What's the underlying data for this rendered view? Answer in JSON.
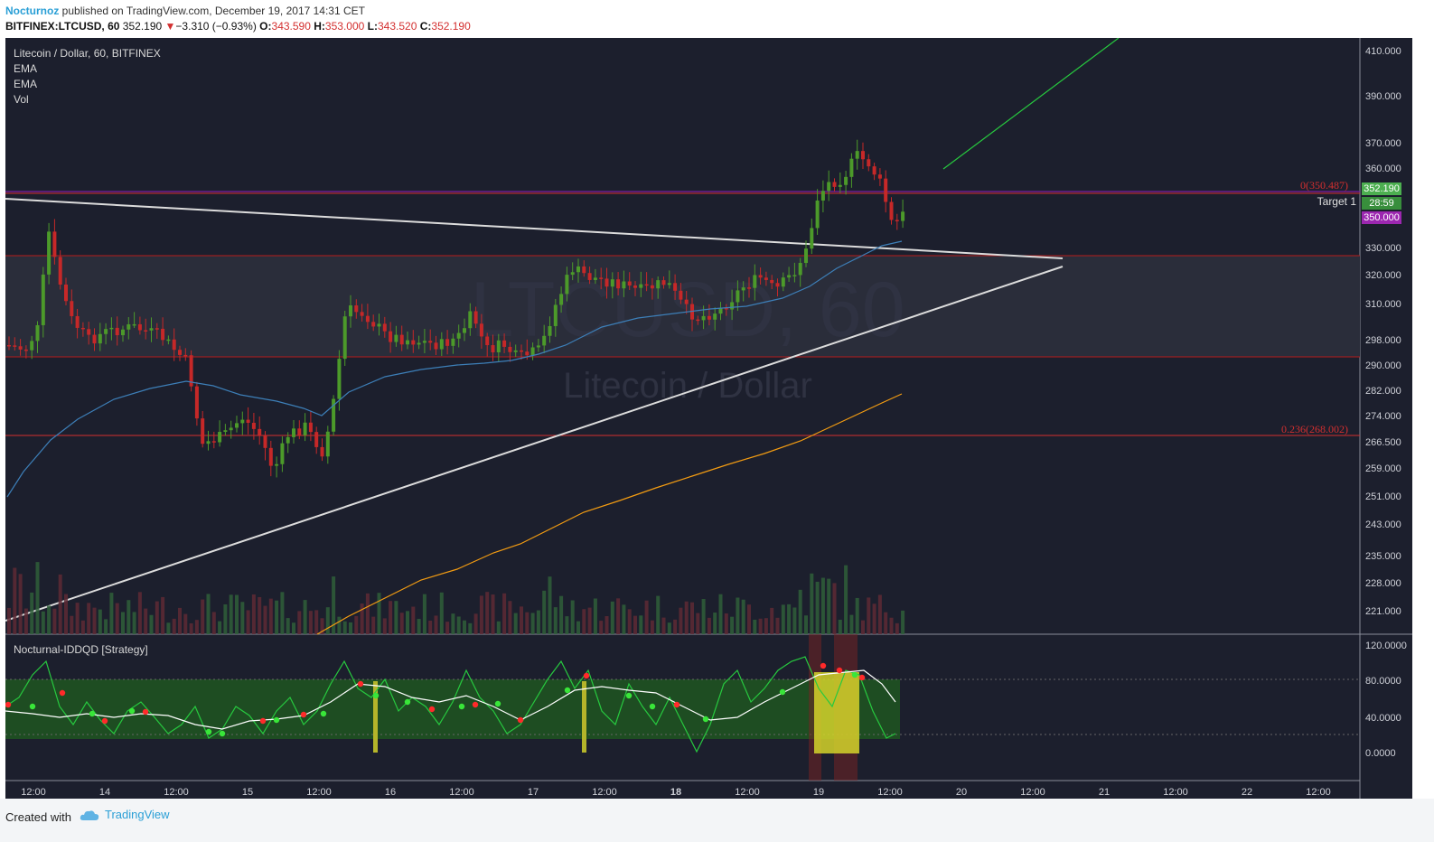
{
  "header": {
    "author": "Nocturnoz",
    "published": "published on TradingView.com, December 19, 2017 14:31 CET",
    "symbol_line": "BITFINEX:LTCUSD, 60",
    "last": "352.190",
    "change_arrow": "▼",
    "change": "−3.310 (−0.93%)",
    "open_label": "O:",
    "open": "343.590",
    "high_label": "H:",
    "high": "353.000",
    "low_label": "L:",
    "low": "343.520",
    "close_label": "C:",
    "close": "352.190"
  },
  "legend": {
    "title": "Litecoin / Dollar, 60, BITFINEX",
    "items": [
      "EMA",
      "EMA",
      "Vol"
    ],
    "indicator": "Nocturnal-IDDQD [Strategy]"
  },
  "watermark": {
    "symbol": "LTCUSD, 60",
    "name": "Litecoin / Dollar"
  },
  "annotations": {
    "fib0": "0(350.487)",
    "fib236": "0.236(268.002)",
    "target": "Target 1"
  },
  "price_tags": {
    "last": "352.190",
    "countdown": "28:59",
    "target_price": "350.000",
    "colors": {
      "last": "#4caf50",
      "countdown": "#388e3c",
      "target": "#9c27b0"
    }
  },
  "price_axis": [
    "410.000",
    "390.000",
    "370.000",
    "360.000",
    "330.000",
    "320.000",
    "310.000",
    "298.000",
    "290.000",
    "282.000",
    "274.000",
    "266.500",
    "259.000",
    "251.000",
    "243.000",
    "235.000",
    "228.000",
    "221.000"
  ],
  "osc_axis": [
    "120.0000",
    "80.0000",
    "40.0000",
    "0.0000"
  ],
  "time_axis": [
    "12:00",
    "14",
    "12:00",
    "15",
    "12:00",
    "16",
    "12:00",
    "17",
    "12:00",
    "18",
    "12:00",
    "19",
    "12:00",
    "20",
    "12:00",
    "21",
    "12:00",
    "22",
    "12:00"
  ],
  "footer": {
    "created": "Created with",
    "brand": "TradingView"
  },
  "colors": {
    "background": "#1c1f2d",
    "up": "#4c9a2a",
    "down": "#c62828",
    "ema_fast": "#3d7fb8",
    "ema_slow": "#f39c12",
    "trendline": "#d9d9d9",
    "projection": "#27c93f",
    "fib": "#d32f2f"
  }
}
